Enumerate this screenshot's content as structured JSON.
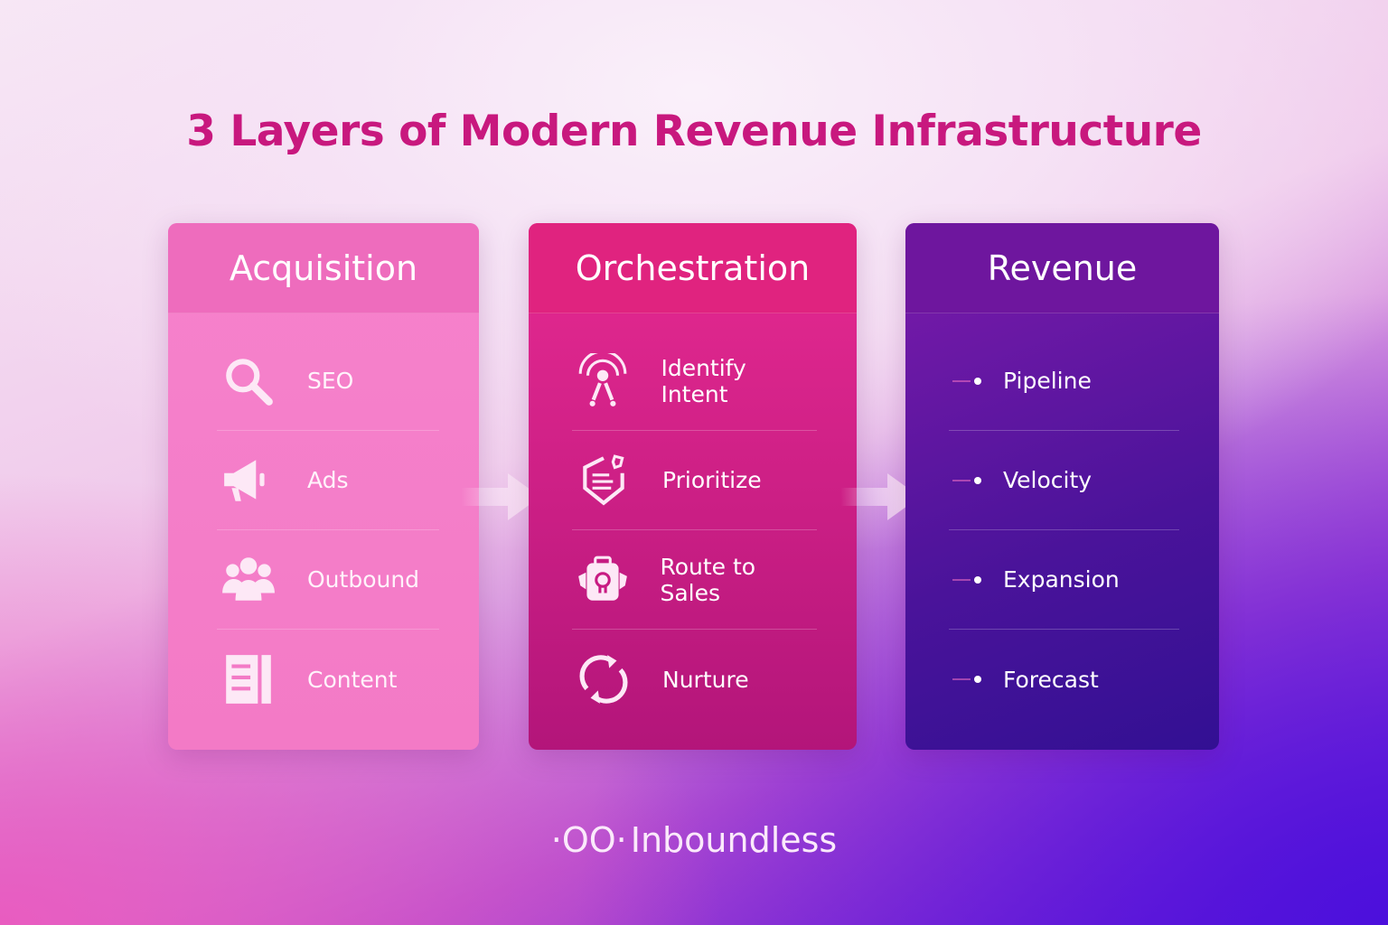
{
  "title": "3 Layers of Modern Revenue Infrastructure",
  "columns": [
    {
      "title": "Acquisition",
      "items": [
        {
          "label": "SEO",
          "icon": "search-icon"
        },
        {
          "label": "Ads",
          "icon": "megaphone-icon"
        },
        {
          "label": "Outbound",
          "icon": "users-icon"
        },
        {
          "label": "Content",
          "icon": "document-icon"
        }
      ]
    },
    {
      "title": "Orchestration",
      "items": [
        {
          "label": "Identify Intent",
          "icon": "signal-icon"
        },
        {
          "label": "Prioritize",
          "icon": "shield-list-icon"
        },
        {
          "label": "Route to Sales",
          "icon": "lock-bag-icon"
        },
        {
          "label": "Nurture",
          "icon": "refresh-icon"
        }
      ]
    },
    {
      "title": "Revenue",
      "items": [
        {
          "label": "Pipeline"
        },
        {
          "label": "Velocity"
        },
        {
          "label": "Expansion"
        },
        {
          "label": "Forecast"
        }
      ]
    }
  ],
  "brand": {
    "name": "Inboundless",
    "logo_mark": "·OO·"
  },
  "colors": {
    "title": "#c8187e",
    "acquisition": "#f37ac6",
    "orchestration": "#e0237f",
    "revenue": "#6e169e"
  }
}
